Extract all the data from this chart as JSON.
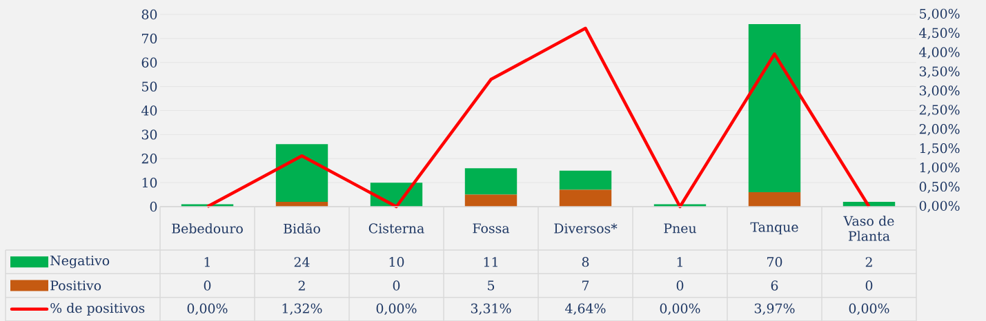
{
  "chart_data": {
    "type": "bar",
    "stacked": true,
    "grid": "y",
    "legend": "bottom",
    "data_labels": true,
    "categories": [
      "Bebedouro",
      "Bidão",
      "Cisterna",
      "Fossa",
      "Diversos*",
      "Pneu",
      "Tanque",
      "Vaso de Planta"
    ],
    "ylim": [
      0,
      80
    ],
    "yticks": [
      0,
      10,
      20,
      30,
      40,
      50,
      60,
      70,
      80
    ],
    "y2lim": [
      0,
      5
    ],
    "y2ticks": [
      {
        "value": 0,
        "label": "0,00%"
      },
      {
        "value": 0.5,
        "label": "0,50%"
      },
      {
        "value": 1,
        "label": "1,00%"
      },
      {
        "value": 1.5,
        "label": "1,50%"
      },
      {
        "value": 2,
        "label": "2,00%"
      },
      {
        "value": 2.5,
        "label": "2,50%"
      },
      {
        "value": 3,
        "label": "3,00%"
      },
      {
        "value": 3.5,
        "label": "3,50%"
      },
      {
        "value": 4,
        "label": "4,00%"
      },
      {
        "value": 4.5,
        "label": "4,50%"
      },
      {
        "value": 5,
        "label": "5,00%"
      }
    ],
    "series": [
      {
        "name": "Positivo",
        "color": "#c55a11",
        "values": [
          0,
          2,
          0,
          5,
          7,
          0,
          6,
          0
        ]
      },
      {
        "name": "Negativo",
        "color": "#00b050",
        "values": [
          1,
          24,
          10,
          11,
          8,
          1,
          70,
          2
        ]
      },
      {
        "name": "% de positivos",
        "type": "line",
        "axis": "y2",
        "color": "#ff0000",
        "values": [
          0,
          1.32,
          0,
          3.31,
          4.64,
          0,
          3.97,
          0
        ],
        "value_labels": [
          "0,00%",
          "1,32%",
          "0,00%",
          "3,31%",
          "4,64%",
          "0,00%",
          "3,97%",
          "0,00%"
        ]
      }
    ]
  }
}
